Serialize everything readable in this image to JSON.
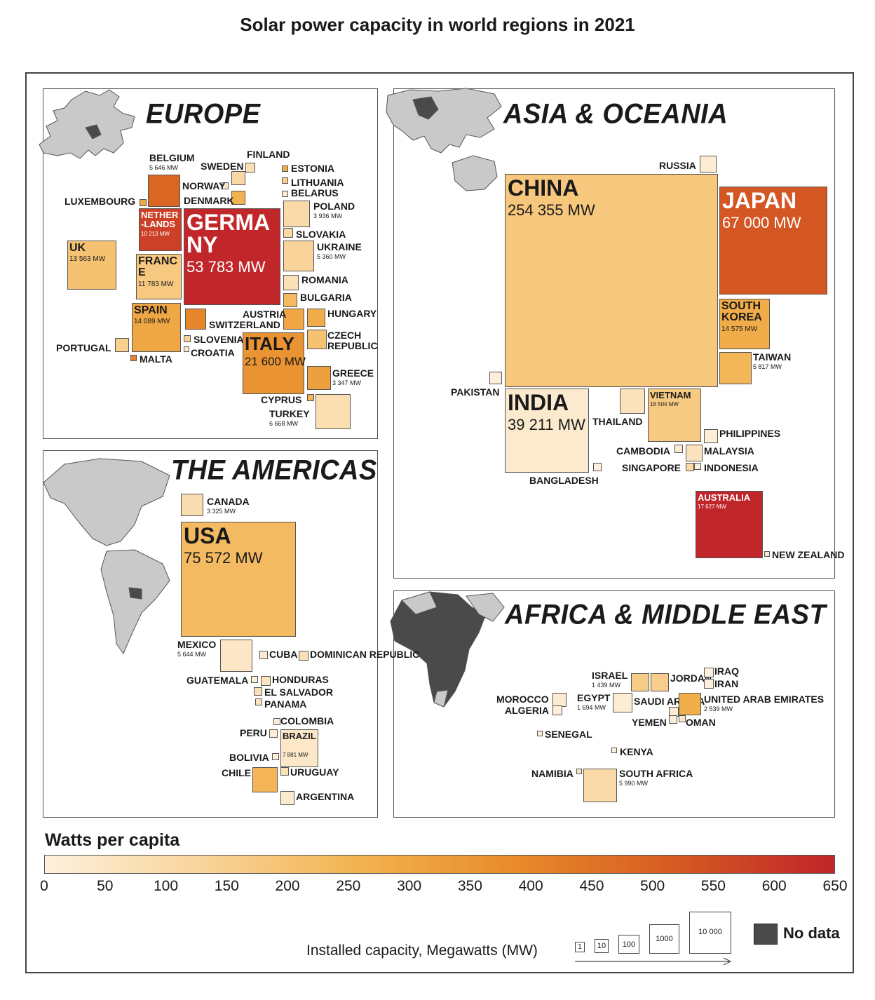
{
  "title": "Solar power capacity in world regions in 2021",
  "colors": {
    "scale": [
      "#fdf0dc",
      "#f9d49a",
      "#f2b24f",
      "#e88a2a",
      "#d55a22",
      "#c0252a"
    ],
    "no_data": "#4a4a4a",
    "map_fill": "#c9c9c9"
  },
  "panels": [
    {
      "id": "europe",
      "title": "EUROPE"
    },
    {
      "id": "asia",
      "title": "ASIA & OCEANIA"
    },
    {
      "id": "americas",
      "title": "THE AMERICAS"
    },
    {
      "id": "africa",
      "title": "AFRICA & MIDDLE EAST"
    }
  ],
  "countries": [
    {
      "name": "GERMANY",
      "mw": "53 783 MW",
      "wpc": 646
    },
    {
      "name": "UK",
      "mw": "13 563 MW",
      "wpc": 200
    },
    {
      "name": "NETHER-LANDS",
      "mw": "10 213 MW",
      "wpc": 585
    },
    {
      "name": "BELGIUM",
      "mw": "5 646 MW",
      "wpc": 488
    },
    {
      "name": "LUXEMBOURG",
      "mw": "",
      "wpc": 300
    },
    {
      "name": "FRANCE",
      "mw": "11 783 MW",
      "wpc": 175
    },
    {
      "name": "SPAIN",
      "mw": "14 089 MW",
      "wpc": 298
    },
    {
      "name": "PORTUGAL",
      "mw": "",
      "wpc": 150
    },
    {
      "name": "MALTA",
      "mw": "",
      "wpc": 400
    },
    {
      "name": "SWEDEN",
      "mw": "",
      "wpc": 110
    },
    {
      "name": "NORWAY",
      "mw": "",
      "wpc": 40
    },
    {
      "name": "DENMARK",
      "mw": "",
      "wpc": 260
    },
    {
      "name": "FINLAND",
      "mw": "",
      "wpc": 80
    },
    {
      "name": "ESTONIA",
      "mw": "",
      "wpc": 270
    },
    {
      "name": "LITHUANIA",
      "mw": "",
      "wpc": 150
    },
    {
      "name": "BELARUS",
      "mw": "",
      "wpc": 30
    },
    {
      "name": "POLAND",
      "mw": "3 936 MW",
      "wpc": 100
    },
    {
      "name": "SLOVAKIA",
      "mw": "",
      "wpc": 110
    },
    {
      "name": "UKRAINE",
      "mw": "5 360 MW",
      "wpc": 130
    },
    {
      "name": "ROMANIA",
      "mw": "",
      "wpc": 70
    },
    {
      "name": "BULGARIA",
      "mw": "",
      "wpc": 230
    },
    {
      "name": "HUNGARY",
      "mw": "",
      "wpc": 280
    },
    {
      "name": "AUSTRIA",
      "mw": "",
      "wpc": 300
    },
    {
      "name": "SWITZERLAND",
      "mw": "",
      "wpc": 400
    },
    {
      "name": "SLOVENIA",
      "mw": "",
      "wpc": 140
    },
    {
      "name": "CROATIA",
      "mw": "",
      "wpc": 30
    },
    {
      "name": "CZECH REPUBLIC",
      "mw": "",
      "wpc": 200
    },
    {
      "name": "ITALY",
      "mw": "21 600 MW",
      "wpc": 360
    },
    {
      "name": "GREECE",
      "mw": "3 347 MW",
      "wpc": 320
    },
    {
      "name": "CYPRUS",
      "mw": "",
      "wpc": 250
    },
    {
      "name": "TURKEY",
      "mw": "6 668 MW",
      "wpc": 80
    },
    {
      "name": "RUSSIA",
      "mw": "",
      "wpc": 15
    },
    {
      "name": "CHINA",
      "mw": "254 355 MW",
      "wpc": 180
    },
    {
      "name": "JAPAN",
      "mw": "67 000 MW",
      "wpc": 530
    },
    {
      "name": "SOUTH KOREA",
      "mw": "14 575 MW",
      "wpc": 280
    },
    {
      "name": "TAIWAN",
      "mw": "5 817 MW",
      "wpc": 245
    },
    {
      "name": "PAKISTAN",
      "mw": "",
      "wpc": 5
    },
    {
      "name": "INDIA",
      "mw": "39 211 MW",
      "wpc": 28
    },
    {
      "name": "THAILAND",
      "mw": "",
      "wpc": 60
    },
    {
      "name": "VIETNAM",
      "mw": "16 504 MW",
      "wpc": 170
    },
    {
      "name": "PHILIPPINES",
      "mw": "",
      "wpc": 10
    },
    {
      "name": "CAMBODIA",
      "mw": "",
      "wpc": 25
    },
    {
      "name": "MALAYSIA",
      "mw": "",
      "wpc": 60
    },
    {
      "name": "SINGAPORE",
      "mw": "",
      "wpc": 100
    },
    {
      "name": "INDONESIA",
      "mw": "",
      "wpc": 1
    },
    {
      "name": "BANGLADESH",
      "mw": "",
      "wpc": 3
    },
    {
      "name": "AUSTRALIA",
      "mw": "17 627 MW",
      "wpc": 690
    },
    {
      "name": "NEW ZEALAND",
      "mw": "",
      "wpc": 40
    },
    {
      "name": "CANADA",
      "mw": "3 325 MW",
      "wpc": 90
    },
    {
      "name": "USA",
      "mw": "75 572 MW",
      "wpc": 228
    },
    {
      "name": "MEXICO",
      "mw": "5 644 MW",
      "wpc": 45
    },
    {
      "name": "CUBA",
      "mw": "",
      "wpc": 20
    },
    {
      "name": "DOMINICAN REPUBLIC",
      "mw": "",
      "wpc": 70
    },
    {
      "name": "GUATEMALA",
      "mw": "",
      "wpc": 10
    },
    {
      "name": "HONDURAS",
      "mw": "",
      "wpc": 55
    },
    {
      "name": "EL SALVADOR",
      "mw": "",
      "wpc": 65
    },
    {
      "name": "PANAMA",
      "mw": "",
      "wpc": 55
    },
    {
      "name": "COLOMBIA",
      "mw": "",
      "wpc": 5
    },
    {
      "name": "PERU",
      "mw": "",
      "wpc": 10
    },
    {
      "name": "BRAZIL",
      "mw": "7 881 MW",
      "wpc": 37
    },
    {
      "name": "BOLIVIA",
      "mw": "",
      "wpc": 10
    },
    {
      "name": "CHILE",
      "mw": "",
      "wpc": 250
    },
    {
      "name": "URUGUAY",
      "mw": "",
      "wpc": 75
    },
    {
      "name": "ARGENTINA",
      "mw": "",
      "wpc": 25
    },
    {
      "name": "ISRAEL",
      "mw": "1 439 MW",
      "wpc": 160
    },
    {
      "name": "JORDAN",
      "mw": "",
      "wpc": 155
    },
    {
      "name": "IRAQ",
      "mw": "",
      "wpc": 0
    },
    {
      "name": "IRAN",
      "mw": "",
      "wpc": 5
    },
    {
      "name": "MOROCCO",
      "mw": "",
      "wpc": 20
    },
    {
      "name": "ALGERIA",
      "mw": "",
      "wpc": 10
    },
    {
      "name": "EGYPT",
      "mw": "1 694 MW",
      "wpc": 17
    },
    {
      "name": "SAUDI ARABIA",
      "mw": "",
      "wpc": 12
    },
    {
      "name": "YEMEN",
      "mw": "",
      "wpc": 8
    },
    {
      "name": "OMAN",
      "mw": "",
      "wpc": 40
    },
    {
      "name": "UNITED ARAB EMIRATES",
      "mw": "2 539 MW",
      "wpc": 270
    },
    {
      "name": "SENEGAL",
      "mw": "",
      "wpc": 10
    },
    {
      "name": "KENYA",
      "mw": "",
      "wpc": 3
    },
    {
      "name": "NAMIBIA",
      "mw": "",
      "wpc": 50
    },
    {
      "name": "SOUTH AFRICA",
      "mw": "5 990 MW",
      "wpc": 100
    }
  ],
  "legend": {
    "title": "Watts per capita",
    "ticks": [
      "0",
      "50",
      "100",
      "150",
      "200",
      "250",
      "300",
      "350",
      "400",
      "450",
      "500",
      "550",
      "600",
      "650"
    ],
    "capacity_label": "Installed capacity, Megawatts (MW)",
    "capacity_boxes": [
      "1",
      "10",
      "100",
      "1000",
      "10 000"
    ],
    "no_data": "No data"
  }
}
